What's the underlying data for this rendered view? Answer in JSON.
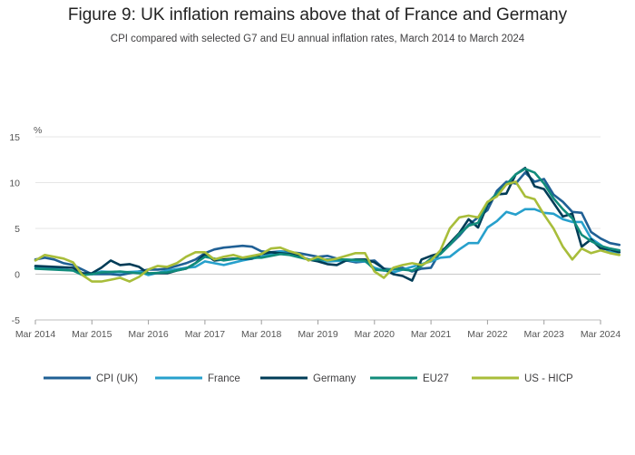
{
  "chart_data": {
    "type": "line",
    "title": "Figure 9: UK inflation remains above that of France and Germany",
    "subtitle": "CPI compared with selected G7 and EU annual inflation rates, March 2014 to March 2024",
    "ylabel": "%",
    "xlabel": "",
    "ylim": [
      -5,
      15
    ],
    "yticks": [
      -5,
      0,
      5,
      10,
      15
    ],
    "xlim": [
      "2014-03",
      "2024-03"
    ],
    "xticks": [
      "Mar 2014",
      "Mar 2015",
      "Mar 2016",
      "Mar 2017",
      "Mar 2018",
      "Mar 2019",
      "Mar 2020",
      "Mar 2021",
      "Mar 2022",
      "Mar 2023",
      "Mar 2024"
    ],
    "grid": true,
    "legend_position": "bottom",
    "x_start": "2014-03",
    "series": [
      {
        "name": "CPI (UK)",
        "color": "#206095",
        "points": [
          [
            0,
            1.6
          ],
          [
            2,
            1.8
          ],
          [
            4,
            1.6
          ],
          [
            6,
            1.2
          ],
          [
            8,
            1.0
          ],
          [
            10,
            0.5
          ],
          [
            12,
            0.0
          ],
          [
            14,
            0.0
          ],
          [
            16,
            0.0
          ],
          [
            18,
            -0.1
          ],
          [
            20,
            0.1
          ],
          [
            22,
            0.3
          ],
          [
            24,
            0.5
          ],
          [
            26,
            0.5
          ],
          [
            28,
            0.6
          ],
          [
            30,
            0.9
          ],
          [
            32,
            1.2
          ],
          [
            34,
            1.6
          ],
          [
            36,
            2.3
          ],
          [
            38,
            2.7
          ],
          [
            40,
            2.9
          ],
          [
            42,
            3.0
          ],
          [
            44,
            3.1
          ],
          [
            46,
            3.0
          ],
          [
            48,
            2.5
          ],
          [
            50,
            2.4
          ],
          [
            52,
            2.5
          ],
          [
            54,
            2.4
          ],
          [
            56,
            2.3
          ],
          [
            58,
            2.1
          ],
          [
            60,
            1.9
          ],
          [
            62,
            2.0
          ],
          [
            64,
            1.7
          ],
          [
            66,
            1.5
          ],
          [
            68,
            1.3
          ],
          [
            70,
            1.4
          ],
          [
            72,
            1.5
          ],
          [
            74,
            0.6
          ],
          [
            76,
            0.5
          ],
          [
            78,
            0.7
          ],
          [
            80,
            0.3
          ],
          [
            82,
            0.6
          ],
          [
            84,
            0.7
          ],
          [
            86,
            2.5
          ],
          [
            88,
            3.2
          ],
          [
            90,
            4.2
          ],
          [
            92,
            5.4
          ],
          [
            94,
            6.2
          ],
          [
            96,
            7.0
          ],
          [
            98,
            9.1
          ],
          [
            100,
            10.1
          ],
          [
            102,
            9.9
          ],
          [
            104,
            11.1
          ],
          [
            106,
            10.1
          ],
          [
            108,
            10.4
          ],
          [
            110,
            8.7
          ],
          [
            112,
            7.9
          ],
          [
            114,
            6.8
          ],
          [
            116,
            6.7
          ],
          [
            118,
            4.6
          ],
          [
            120,
            3.9
          ],
          [
            122,
            3.4
          ],
          [
            124,
            3.2
          ]
        ]
      },
      {
        "name": "France",
        "color": "#27a0cc",
        "points": [
          [
            0,
            0.8
          ],
          [
            4,
            0.6
          ],
          [
            8,
            0.4
          ],
          [
            10,
            0.1
          ],
          [
            12,
            0.0
          ],
          [
            14,
            0.3
          ],
          [
            18,
            0.2
          ],
          [
            22,
            0.3
          ],
          [
            24,
            -0.1
          ],
          [
            28,
            0.4
          ],
          [
            32,
            0.7
          ],
          [
            34,
            0.8
          ],
          [
            36,
            1.4
          ],
          [
            40,
            1.0
          ],
          [
            44,
            1.5
          ],
          [
            48,
            1.9
          ],
          [
            52,
            2.5
          ],
          [
            54,
            2.2
          ],
          [
            58,
            1.6
          ],
          [
            62,
            1.4
          ],
          [
            66,
            1.5
          ],
          [
            70,
            1.4
          ],
          [
            72,
            0.7
          ],
          [
            74,
            0.4
          ],
          [
            76,
            0.2
          ],
          [
            80,
            0.8
          ],
          [
            82,
            1.1
          ],
          [
            84,
            1.4
          ],
          [
            86,
            1.8
          ],
          [
            88,
            1.9
          ],
          [
            90,
            2.7
          ],
          [
            92,
            3.4
          ],
          [
            94,
            3.4
          ],
          [
            96,
            5.1
          ],
          [
            98,
            5.8
          ],
          [
            100,
            6.8
          ],
          [
            102,
            6.5
          ],
          [
            104,
            7.1
          ],
          [
            106,
            7.1
          ],
          [
            108,
            6.7
          ],
          [
            110,
            6.6
          ],
          [
            112,
            6.0
          ],
          [
            114,
            5.7
          ],
          [
            116,
            5.7
          ],
          [
            118,
            3.9
          ],
          [
            120,
            3.2
          ],
          [
            122,
            2.4
          ],
          [
            124,
            2.4
          ]
        ]
      },
      {
        "name": "Germany",
        "color": "#003c57",
        "points": [
          [
            0,
            0.9
          ],
          [
            4,
            0.8
          ],
          [
            8,
            0.7
          ],
          [
            10,
            0.1
          ],
          [
            12,
            0.1
          ],
          [
            14,
            0.7
          ],
          [
            16,
            1.5
          ],
          [
            18,
            1.0
          ],
          [
            20,
            1.1
          ],
          [
            22,
            0.8
          ],
          [
            24,
            0.1
          ],
          [
            28,
            0.1
          ],
          [
            30,
            0.4
          ],
          [
            32,
            0.6
          ],
          [
            34,
            1.2
          ],
          [
            36,
            2.2
          ],
          [
            38,
            1.5
          ],
          [
            40,
            1.6
          ],
          [
            42,
            1.7
          ],
          [
            44,
            1.7
          ],
          [
            46,
            1.7
          ],
          [
            48,
            2.2
          ],
          [
            50,
            2.4
          ],
          [
            52,
            2.3
          ],
          [
            54,
            2.2
          ],
          [
            56,
            2.0
          ],
          [
            58,
            1.6
          ],
          [
            60,
            1.4
          ],
          [
            62,
            1.1
          ],
          [
            64,
            1.0
          ],
          [
            66,
            1.5
          ],
          [
            68,
            1.6
          ],
          [
            70,
            1.6
          ],
          [
            72,
            1.3
          ],
          [
            74,
            0.6
          ],
          [
            76,
            0.0
          ],
          [
            78,
            -0.2
          ],
          [
            80,
            -0.7
          ],
          [
            82,
            1.6
          ],
          [
            84,
            2.0
          ],
          [
            86,
            2.3
          ],
          [
            88,
            3.4
          ],
          [
            90,
            4.5
          ],
          [
            92,
            6.0
          ],
          [
            94,
            5.1
          ],
          [
            96,
            7.6
          ],
          [
            98,
            8.7
          ],
          [
            100,
            8.8
          ],
          [
            102,
            10.9
          ],
          [
            104,
            11.6
          ],
          [
            106,
            9.6
          ],
          [
            108,
            9.3
          ],
          [
            110,
            7.8
          ],
          [
            112,
            6.3
          ],
          [
            114,
            6.6
          ],
          [
            116,
            3.0
          ],
          [
            118,
            3.8
          ],
          [
            120,
            2.8
          ],
          [
            122,
            2.7
          ],
          [
            124,
            2.4
          ]
        ]
      },
      {
        "name": "EU27",
        "color": "#118c7b",
        "points": [
          [
            0,
            0.6
          ],
          [
            4,
            0.5
          ],
          [
            8,
            0.4
          ],
          [
            10,
            -0.1
          ],
          [
            12,
            0.0
          ],
          [
            14,
            0.2
          ],
          [
            18,
            0.3
          ],
          [
            22,
            0.1
          ],
          [
            24,
            0.1
          ],
          [
            28,
            0.2
          ],
          [
            32,
            0.6
          ],
          [
            34,
            1.2
          ],
          [
            36,
            1.9
          ],
          [
            40,
            1.5
          ],
          [
            44,
            1.8
          ],
          [
            48,
            1.8
          ],
          [
            52,
            2.2
          ],
          [
            54,
            2.1
          ],
          [
            58,
            1.6
          ],
          [
            62,
            1.6
          ],
          [
            66,
            1.6
          ],
          [
            70,
            1.5
          ],
          [
            72,
            0.5
          ],
          [
            74,
            0.4
          ],
          [
            76,
            0.6
          ],
          [
            80,
            0.4
          ],
          [
            82,
            0.9
          ],
          [
            84,
            1.7
          ],
          [
            86,
            2.2
          ],
          [
            88,
            3.2
          ],
          [
            90,
            4.4
          ],
          [
            92,
            5.3
          ],
          [
            94,
            5.6
          ],
          [
            96,
            7.8
          ],
          [
            98,
            8.8
          ],
          [
            100,
            9.8
          ],
          [
            102,
            10.9
          ],
          [
            104,
            11.5
          ],
          [
            106,
            11.1
          ],
          [
            108,
            9.9
          ],
          [
            110,
            8.3
          ],
          [
            112,
            7.1
          ],
          [
            114,
            6.1
          ],
          [
            116,
            4.3
          ],
          [
            118,
            3.6
          ],
          [
            120,
            3.1
          ],
          [
            122,
            2.8
          ],
          [
            124,
            2.6
          ]
        ]
      },
      {
        "name": "US - HICP",
        "color": "#a8bd3a",
        "points": [
          [
            0,
            1.5
          ],
          [
            2,
            2.1
          ],
          [
            4,
            1.9
          ],
          [
            6,
            1.7
          ],
          [
            8,
            1.3
          ],
          [
            10,
            -0.1
          ],
          [
            12,
            -0.8
          ],
          [
            14,
            -0.8
          ],
          [
            16,
            -0.6
          ],
          [
            18,
            -0.4
          ],
          [
            20,
            -0.8
          ],
          [
            22,
            -0.3
          ],
          [
            24,
            0.5
          ],
          [
            26,
            0.9
          ],
          [
            28,
            0.8
          ],
          [
            30,
            1.2
          ],
          [
            32,
            1.9
          ],
          [
            34,
            2.4
          ],
          [
            36,
            2.4
          ],
          [
            38,
            1.6
          ],
          [
            40,
            1.9
          ],
          [
            42,
            2.1
          ],
          [
            44,
            1.8
          ],
          [
            46,
            2.0
          ],
          [
            48,
            2.2
          ],
          [
            50,
            2.8
          ],
          [
            52,
            2.9
          ],
          [
            54,
            2.5
          ],
          [
            56,
            2.2
          ],
          [
            58,
            1.5
          ],
          [
            60,
            1.9
          ],
          [
            62,
            1.5
          ],
          [
            64,
            1.7
          ],
          [
            66,
            2.0
          ],
          [
            68,
            2.3
          ],
          [
            70,
            2.3
          ],
          [
            72,
            0.3
          ],
          [
            74,
            -0.4
          ],
          [
            76,
            0.7
          ],
          [
            78,
            1.0
          ],
          [
            80,
            1.2
          ],
          [
            82,
            1.0
          ],
          [
            84,
            1.5
          ],
          [
            86,
            2.6
          ],
          [
            88,
            5.0
          ],
          [
            90,
            6.2
          ],
          [
            92,
            6.4
          ],
          [
            94,
            6.2
          ],
          [
            96,
            7.9
          ],
          [
            98,
            8.5
          ],
          [
            100,
            9.8
          ],
          [
            102,
            10.1
          ],
          [
            104,
            8.5
          ],
          [
            106,
            8.2
          ],
          [
            108,
            6.5
          ],
          [
            110,
            5.0
          ],
          [
            112,
            3.0
          ],
          [
            114,
            1.6
          ],
          [
            116,
            2.8
          ],
          [
            118,
            2.3
          ],
          [
            120,
            2.6
          ],
          [
            122,
            2.3
          ],
          [
            124,
            2.1
          ]
        ]
      }
    ]
  }
}
